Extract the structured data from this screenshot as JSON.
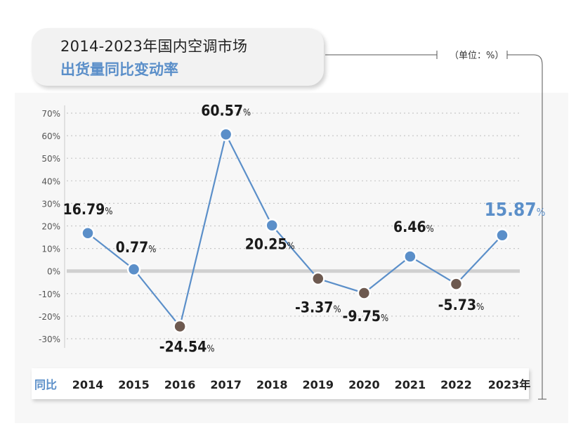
{
  "title": {
    "line1": "2014-2023年国内空调市场",
    "line2": "出货量同比变动率"
  },
  "unit_label": "（单位：%）",
  "x_axis_row_label": "同比",
  "colors": {
    "line": "#5b8fc9",
    "positive_marker": "#5b8fc9",
    "negative_marker": "#6e5a50",
    "highlight_label": "#5b8fc9",
    "grid": "#c8c8c8",
    "zero_line": "#d0d0d0"
  },
  "chart_data": {
    "type": "line",
    "categories": [
      "2014",
      "2015",
      "2016",
      "2017",
      "2018",
      "2019",
      "2020",
      "2021",
      "2022",
      "2023年"
    ],
    "series": [
      {
        "values": [
          16.79,
          0.77,
          -24.54,
          60.57,
          20.25,
          -3.37,
          -9.75,
          6.46,
          -5.73,
          15.87
        ]
      }
    ],
    "data_labels": [
      "16.79",
      "0.77",
      "-24.54",
      "60.57",
      "20.25",
      "-3.37",
      "-9.75",
      "6.46",
      "-5.73",
      "15.87"
    ],
    "label_suffix": "%",
    "yticks": [
      "70%",
      "60%",
      "50%",
      "40%",
      "30%",
      "20%",
      "10%",
      "0%",
      "-10%",
      "-20%",
      "-30%"
    ],
    "ylim": [
      -30,
      70
    ],
    "grid": true,
    "xlabel": "",
    "ylabel": ""
  }
}
